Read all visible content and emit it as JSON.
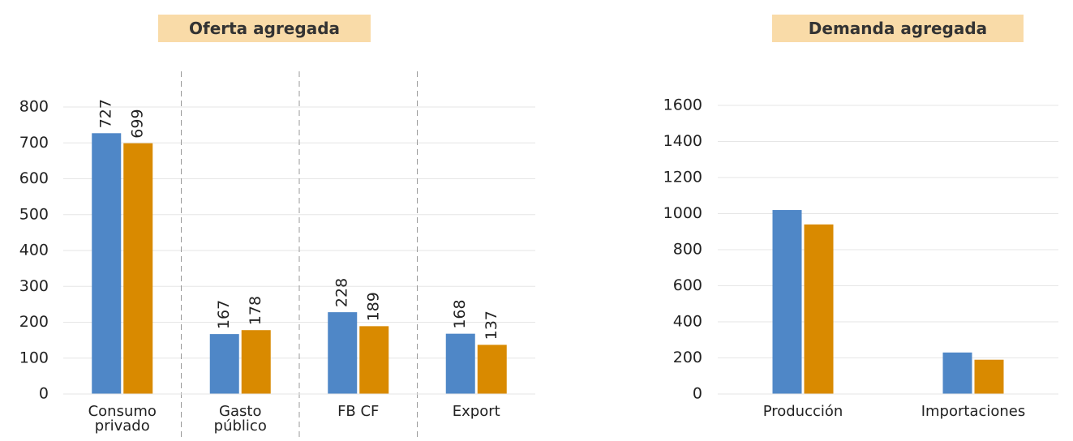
{
  "chart_data": [
    {
      "type": "bar",
      "title": "Oferta agregada",
      "categories": [
        "Consumo\nprivado",
        "Gasto\npúblico",
        "FB CF",
        "Export"
      ],
      "series": [
        {
          "color": "#4f87c7",
          "values": [
            727,
            167,
            228,
            168
          ]
        },
        {
          "color": "#d98a00",
          "values": [
            699,
            178,
            189,
            137
          ]
        }
      ],
      "ylim": [
        0,
        800
      ],
      "yticks": [
        0,
        100,
        200,
        300,
        400,
        500,
        600,
        700,
        800
      ],
      "grid": true,
      "data_labels": true,
      "category_separators": true
    },
    {
      "type": "bar",
      "title": "Demanda agregada",
      "categories": [
        "Producción",
        "Importaciones"
      ],
      "series": [
        {
          "color": "#4f87c7",
          "values": [
            1020,
            230
          ]
        },
        {
          "color": "#d98a00",
          "values": [
            940,
            190
          ]
        }
      ],
      "ylim": [
        0,
        1600
      ],
      "yticks": [
        0,
        200,
        400,
        600,
        800,
        1000,
        1200,
        1400,
        1600
      ],
      "grid": true,
      "data_labels": false,
      "category_separators": false
    }
  ]
}
